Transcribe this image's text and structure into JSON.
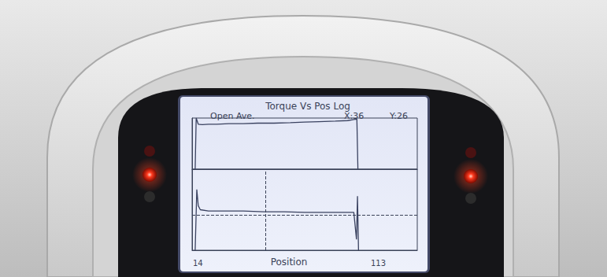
{
  "chart_data": {
    "type": "line",
    "title": "Torque Vs Pos Log",
    "subtitle": "Open Ave.",
    "annotations": [
      "X:36",
      "Y:26"
    ],
    "xlabel": "Position",
    "x_end_labels": [
      "14",
      "113"
    ],
    "xlim": [
      0,
      110
    ],
    "tick_labels": false,
    "grid": false,
    "panels": [
      {
        "ylim": [
          0,
          100
        ],
        "series": [
          {
            "color": "#3a4260",
            "x": [
              1.5,
              2,
              3,
              5,
              8,
              12,
              18,
              25,
              32,
              40,
              48,
              55,
              62,
              70,
              76,
              79,
              80.5,
              81
            ],
            "values": [
              0,
              100,
              88,
              87,
              88,
              88,
              89,
              89,
              90,
              90,
              91,
              92,
              93,
              94,
              95,
              97,
              98,
              0
            ]
          }
        ]
      },
      {
        "ylim": [
          0,
          60
        ],
        "cursor": {
          "x": 36,
          "y": 26,
          "line_style": "dashed"
        },
        "series": [
          {
            "color": "#3a4260",
            "x": [
              1.5,
              2.3,
              3,
              4,
              8,
              15,
              25,
              35,
              45,
              55,
              65,
              75,
              79,
              80.3,
              80.8,
              81.3
            ],
            "values": [
              0,
              45,
              33,
              30,
              29,
              29,
              29,
              28.5,
              28.5,
              28,
              28,
              28,
              28,
              8,
              40,
              0
            ]
          }
        ]
      }
    ]
  }
}
